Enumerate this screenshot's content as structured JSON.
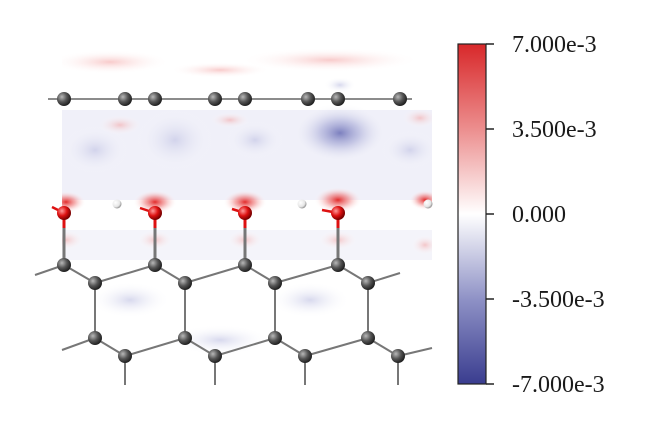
{
  "colorbar": {
    "ticks": [
      {
        "label": "7.000e-3",
        "value": 0.007
      },
      {
        "label": "3.500e-3",
        "value": 0.0035
      },
      {
        "label": "0.000",
        "value": 0.0
      },
      {
        "label": "-3.500e-3",
        "value": -0.0035
      },
      {
        "label": "-7.000e-3",
        "value": -0.007
      }
    ],
    "range": [
      -0.007,
      0.007
    ],
    "color_max": "#d8282a",
    "color_mid": "#ffffff",
    "color_min": "#3a3d8f"
  },
  "atom_colors": {
    "carbon": "#555555",
    "oxygen": "#dd1111",
    "hydrogen": "#f4f4f4",
    "bond": "#777777"
  }
}
